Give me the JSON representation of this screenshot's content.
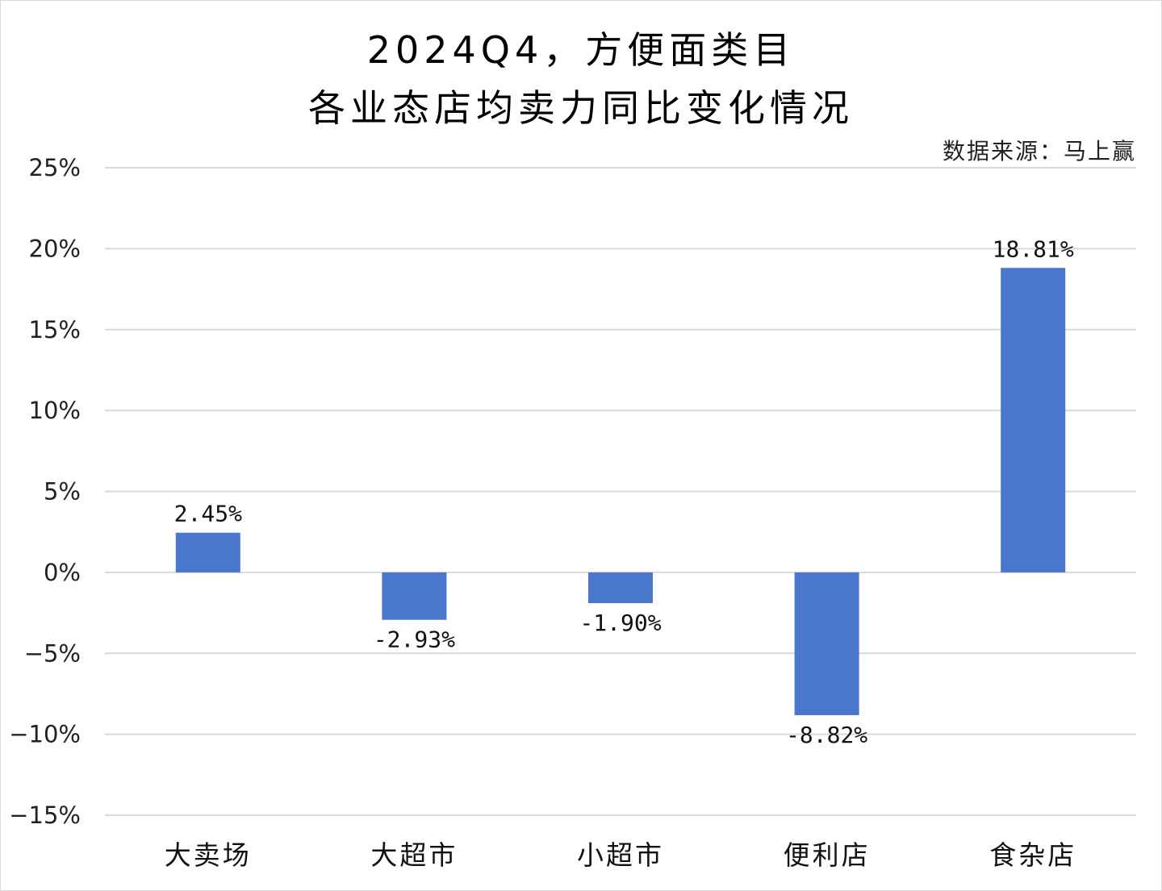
{
  "chart_data": {
    "type": "bar",
    "title": [
      "2024Q4，方便面类目",
      "各业态店均卖力同比变化情况"
    ],
    "source_note": "数据来源：马上赢",
    "categories": [
      "大卖场",
      "大超市",
      "小超市",
      "便利店",
      "食杂店"
    ],
    "values": [
      2.45,
      -2.93,
      -1.9,
      -8.82,
      18.81
    ],
    "data_labels": [
      "2.45%",
      "-2.93%",
      "-1.90%",
      "-8.82%",
      "18.81%"
    ],
    "unit": "%",
    "ylim": [
      -15,
      25
    ],
    "yticks": [
      25,
      20,
      15,
      10,
      5,
      0,
      -5,
      -10,
      -15
    ],
    "ytick_labels": [
      "25%",
      "20%",
      "15%",
      "10%",
      "5%",
      "0%",
      "−5%",
      "−10%",
      "−15%"
    ],
    "xlabel": "",
    "ylabel": "",
    "grid": true,
    "legend": "none",
    "colors": {
      "bar": "#4a76cc",
      "grid": "#d9d9d9"
    }
  }
}
